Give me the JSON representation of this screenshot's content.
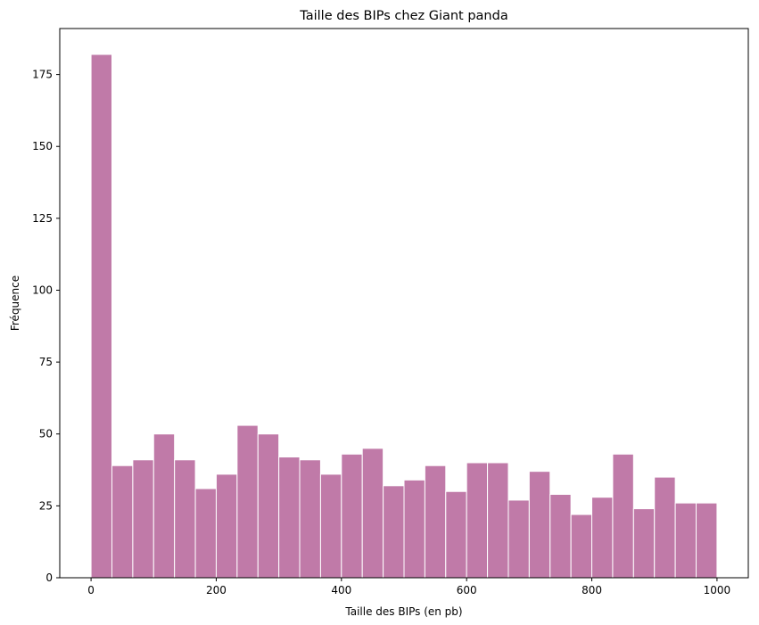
{
  "chart_data": {
    "type": "bar",
    "title": "Taille des BIPs chez Giant panda",
    "xlabel": "Taille des BIPs (en pb)",
    "ylabel": "Fréquence",
    "bar_color": "#c07aa8",
    "edge_color": "#ffffff",
    "xlim": [
      -50,
      1050
    ],
    "ylim": [
      0,
      191
    ],
    "x_ticks": [
      0,
      200,
      400,
      600,
      800,
      1000
    ],
    "y_ticks": [
      0,
      25,
      50,
      75,
      100,
      125,
      150,
      175
    ],
    "bin_width": 33.33,
    "bin_edges": [
      0,
      33.33,
      66.67,
      100,
      133.33,
      166.67,
      200,
      233.33,
      266.67,
      300,
      333.33,
      366.67,
      400,
      433.33,
      466.67,
      500,
      533.33,
      566.67,
      600,
      633.33,
      666.67,
      700,
      733.33,
      766.67,
      800,
      833.33,
      866.67,
      900,
      933.33,
      966.67,
      1000
    ],
    "values": [
      182,
      39,
      41,
      50,
      41,
      31,
      36,
      53,
      50,
      42,
      41,
      36,
      43,
      45,
      32,
      34,
      39,
      30,
      40,
      40,
      27,
      37,
      29,
      22,
      28,
      43,
      24,
      35,
      26,
      26
    ],
    "grid": false,
    "legend": "none"
  }
}
